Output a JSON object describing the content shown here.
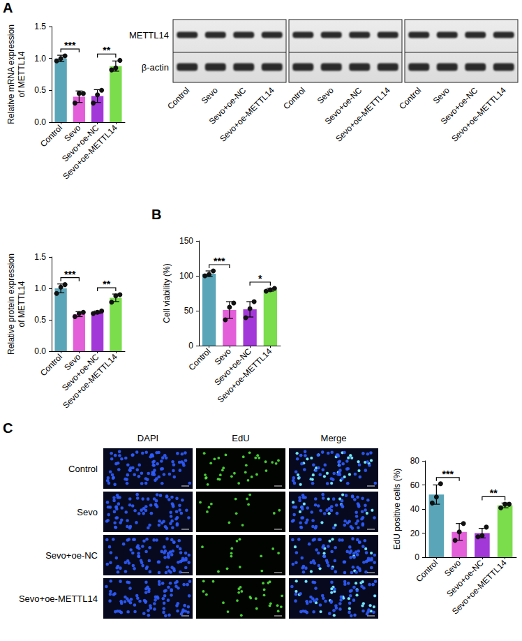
{
  "chart_data": [
    {
      "type": "bar",
      "panel": "A",
      "y_label": "Relative mRNA expression of METTL14",
      "categories": [
        "Control",
        "Sevo",
        "Sevo+oe-NC",
        "Sevo+oe-METTL14"
      ],
      "values": [
        1.0,
        0.4,
        0.41,
        0.88
      ],
      "errors": [
        0.05,
        0.09,
        0.1,
        0.08
      ],
      "points": [
        [
          0.96,
          1.0,
          1.04
        ],
        [
          0.3,
          0.45,
          0.45
        ],
        [
          0.3,
          0.43,
          0.5
        ],
        [
          0.82,
          0.85,
          0.97
        ]
      ],
      "colors": [
        "#5aa5b8",
        "#e35fd9",
        "#a338d8",
        "#7bdc4c"
      ],
      "ylim": [
        0,
        1.5
      ],
      "yticks": [
        {
          "value": 0,
          "label": "0.0"
        },
        {
          "value": 0.5,
          "label": "0.5"
        },
        {
          "value": 1,
          "label": "1.0"
        },
        {
          "value": 1.5,
          "label": "1.5"
        }
      ],
      "significance": [
        {
          "pair": [
            "Control",
            "Sevo"
          ],
          "label": "***"
        },
        {
          "pair": [
            "Sevo+oe-NC",
            "Sevo+oe-METTL14"
          ],
          "label": "**"
        }
      ]
    },
    {
      "type": "bar",
      "y_label": "Relative protein expression of METTL14",
      "categories": [
        "Control",
        "Sevo",
        "Sevo+oe-NC",
        "Sevo+oe-METTL14"
      ],
      "values": [
        1.0,
        0.59,
        0.62,
        0.85
      ],
      "errors": [
        0.07,
        0.04,
        0.02,
        0.06
      ],
      "points": [
        [
          0.92,
          1.02,
          1.06
        ],
        [
          0.55,
          0.6,
          0.62
        ],
        [
          0.6,
          0.62,
          0.64
        ],
        [
          0.78,
          0.88,
          0.9
        ]
      ],
      "colors": [
        "#5aa5b8",
        "#e35fd9",
        "#a338d8",
        "#7bdc4c"
      ],
      "ylim": [
        0,
        1.5
      ],
      "yticks": [
        {
          "value": 0,
          "label": "0.0"
        },
        {
          "value": 0.5,
          "label": "0.5"
        },
        {
          "value": 1,
          "label": "1.0"
        },
        {
          "value": 1.5,
          "label": "1.5"
        }
      ],
      "significance": [
        {
          "pair": [
            "Control",
            "Sevo"
          ],
          "label": "***"
        },
        {
          "pair": [
            "Sevo+oe-NC",
            "Sevo+oe-METTL14"
          ],
          "label": "**"
        }
      ]
    },
    {
      "type": "bar",
      "panel": "B",
      "y_label": "Cell viability (%)",
      "categories": [
        "Control",
        "Sevo",
        "Sevo+oe-NC",
        "Sevo+oe-METTL14"
      ],
      "values": [
        103,
        51,
        52,
        80
      ],
      "errors": [
        4,
        12,
        11,
        2
      ],
      "points": [
        [
          100,
          102,
          107
        ],
        [
          37,
          55,
          61
        ],
        [
          40,
          53,
          63
        ],
        [
          78,
          80,
          82
        ]
      ],
      "colors": [
        "#5aa5b8",
        "#e35fd9",
        "#a338d8",
        "#7bdc4c"
      ],
      "ylim": [
        0,
        150
      ],
      "yticks": [
        0,
        50,
        100,
        150
      ],
      "significance": [
        {
          "pair": [
            "Control",
            "Sevo"
          ],
          "label": "***"
        },
        {
          "pair": [
            "Sevo+oe-NC",
            "Sevo+oe-METTL14"
          ],
          "label": "*"
        }
      ]
    },
    {
      "type": "bar",
      "y_label": "EdU positive cells (%)",
      "categories": [
        "Control",
        "Sevo",
        "Sevo+oe-NC",
        "Sevo+oe-METTL14"
      ],
      "values": [
        52,
        21,
        20,
        43
      ],
      "errors": [
        8,
        7,
        4,
        2
      ],
      "points": [
        [
          45,
          50,
          61
        ],
        [
          14,
          21,
          28
        ],
        [
          17,
          18,
          25
        ],
        [
          41,
          44,
          44
        ]
      ],
      "colors": [
        "#5aa5b8",
        "#e35fd9",
        "#a338d8",
        "#7bdc4c"
      ],
      "ylim": [
        0,
        80
      ],
      "yticks": [
        0,
        20,
        40,
        60,
        80
      ],
      "significance": [
        {
          "pair": [
            "Control",
            "Sevo"
          ],
          "label": "***"
        },
        {
          "pair": [
            "Sevo+oe-NC",
            "Sevo+oe-METTL14"
          ],
          "label": "**"
        }
      ]
    }
  ],
  "western_blot": {
    "proteins": [
      "METTL14",
      "β-actin"
    ],
    "groups": [
      [
        "Control",
        "Sevo",
        "Sevo+oe-NC",
        "Sevo+oe-METTL14"
      ],
      [
        "Control",
        "Sevo",
        "Sevo+oe-NC",
        "Sevo+oe-METTL14"
      ],
      [
        "Control",
        "Sevo",
        "Sevo+oe-NC",
        "Sevo+oe-METTL14"
      ]
    ]
  },
  "micrographs": {
    "panel": "C",
    "columns": [
      "DAPI",
      "EdU",
      "Merge"
    ],
    "rows": [
      "Control",
      "Sevo",
      "Sevo+oe-NC",
      "Sevo+oe-METTL14"
    ]
  }
}
